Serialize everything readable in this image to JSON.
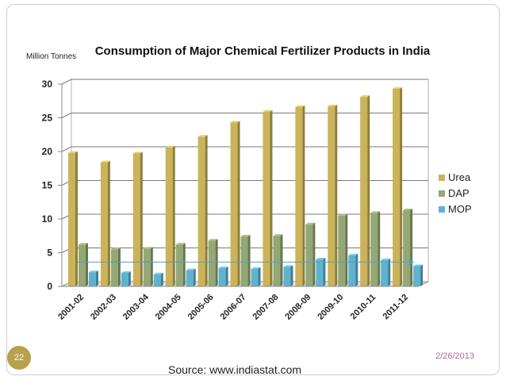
{
  "slide": {
    "page_number": "22",
    "date": "2/26/2013",
    "source": "Source: www.indiastat.com"
  },
  "colors": {
    "urea": "#cbb359",
    "dap": "#93a874",
    "mop": "#5fb3cf",
    "trend": "#4aa3c7",
    "badge": "#b7a14d"
  },
  "chart_data": {
    "type": "bar",
    "title": "Consumption of Major Chemical Fertilizer Products in India",
    "ylabel": "Million Tonnes",
    "xlabel": "",
    "ylim": [
      0,
      30
    ],
    "yticks": [
      "0",
      "5",
      "10",
      "15",
      "20",
      "25",
      "30"
    ],
    "grid": true,
    "legend_position": "right",
    "categories": [
      "2001-02",
      "2002-03",
      "2003-04",
      "2004-05",
      "2005-06",
      "2006-07",
      "2007-08",
      "2008-09",
      "2009-10",
      "2010-11",
      "2011-12"
    ],
    "series": [
      {
        "name": "Urea",
        "values": [
          19.8,
          18.4,
          19.7,
          20.6,
          22.2,
          24.3,
          25.9,
          26.6,
          26.7,
          28.1,
          29.3
        ]
      },
      {
        "name": "DAP",
        "values": [
          6.2,
          5.5,
          5.6,
          6.2,
          6.8,
          7.4,
          7.5,
          9.2,
          10.5,
          10.9,
          11.3
        ]
      },
      {
        "name": "MOP",
        "values": [
          2.1,
          2.0,
          1.8,
          2.4,
          2.7,
          2.6,
          2.9,
          4.0,
          4.6,
          3.9,
          3.0
        ]
      }
    ],
    "annotations": [
      {
        "type": "trend-arrow",
        "y": 3.6
      }
    ]
  }
}
